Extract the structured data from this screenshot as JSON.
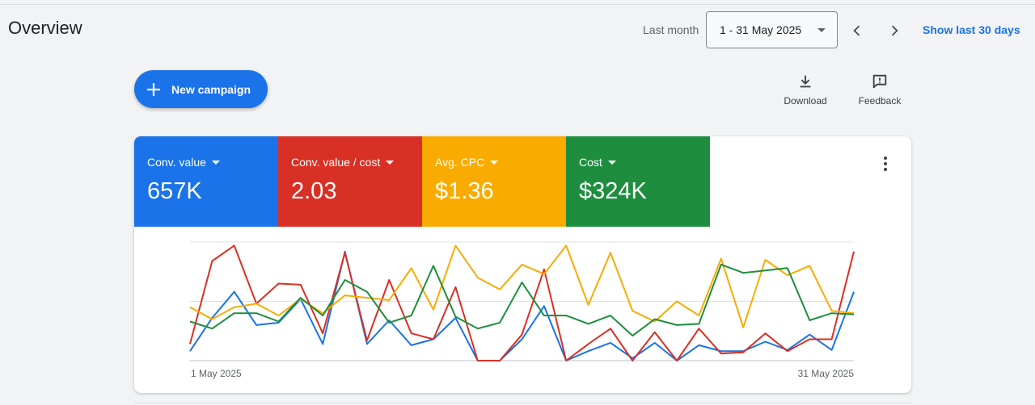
{
  "header": {
    "title": "Overview",
    "range_label": "Last month",
    "date_range": "1 - 31 May 2025",
    "show_last": "Show last 30 days"
  },
  "icons": {
    "prev": "chevron-left-icon",
    "next": "chevron-right-icon",
    "download": "download-icon",
    "feedback": "feedback-icon",
    "plus": "plus-icon",
    "more": "more-vert-icon"
  },
  "toolbar": {
    "new_campaign": "New campaign",
    "download": "Download",
    "feedback": "Feedback"
  },
  "metrics": [
    {
      "label": "Conv. value",
      "value": "657K",
      "color": "#1a73e8"
    },
    {
      "label": "Conv. value / cost",
      "value": "2.03",
      "color": "#d93025"
    },
    {
      "label": "Avg. CPC",
      "value": "$1.36",
      "color": "#f9ab00"
    },
    {
      "label": "Cost",
      "value": "$324K",
      "color": "#1e8e3e"
    }
  ],
  "chart_data": {
    "type": "line",
    "x_start_label": "1 May 2025",
    "x_end_label": "31 May 2025",
    "x": [
      1,
      2,
      3,
      4,
      5,
      6,
      7,
      8,
      9,
      10,
      11,
      12,
      13,
      14,
      15,
      16,
      17,
      18,
      19,
      20,
      21,
      22,
      23,
      24,
      25,
      26,
      27,
      28,
      29,
      30,
      31
    ],
    "grid": true,
    "y_axis_visible": false,
    "series": [
      {
        "color": "#1a73e8",
        "values": [
          0.08,
          0.36,
          0.58,
          0.3,
          0.32,
          0.52,
          0.14,
          0.92,
          0.14,
          0.34,
          0.13,
          0.18,
          0.36,
          0.0,
          0.0,
          0.18,
          0.46,
          0.0,
          0.08,
          0.15,
          0.02,
          0.15,
          0.0,
          0.13,
          0.08,
          0.08,
          0.16,
          0.09,
          0.22,
          0.09,
          0.58
        ]
      },
      {
        "color": "#d93025",
        "values": [
          0.14,
          0.84,
          0.97,
          0.48,
          0.65,
          0.64,
          0.23,
          0.91,
          0.17,
          0.68,
          0.23,
          0.18,
          0.62,
          0.0,
          0.0,
          0.22,
          0.77,
          0.0,
          0.14,
          0.27,
          0.0,
          0.24,
          0.0,
          0.27,
          0.06,
          0.07,
          0.23,
          0.08,
          0.18,
          0.18,
          0.92
        ]
      },
      {
        "color": "#f9ab00",
        "values": [
          0.45,
          0.35,
          0.45,
          0.48,
          0.38,
          0.52,
          0.4,
          0.55,
          0.53,
          0.51,
          0.78,
          0.43,
          0.97,
          0.7,
          0.6,
          0.81,
          0.73,
          0.97,
          0.47,
          0.91,
          0.42,
          0.33,
          0.5,
          0.38,
          0.86,
          0.28,
          0.85,
          0.72,
          0.8,
          0.42,
          0.4
        ]
      },
      {
        "color": "#1e8e3e",
        "values": [
          0.33,
          0.27,
          0.4,
          0.4,
          0.33,
          0.53,
          0.38,
          0.68,
          0.58,
          0.32,
          0.38,
          0.8,
          0.37,
          0.27,
          0.32,
          0.66,
          0.38,
          0.38,
          0.31,
          0.38,
          0.21,
          0.35,
          0.3,
          0.31,
          0.81,
          0.74,
          0.76,
          0.78,
          0.34,
          0.4,
          0.39
        ]
      }
    ]
  }
}
